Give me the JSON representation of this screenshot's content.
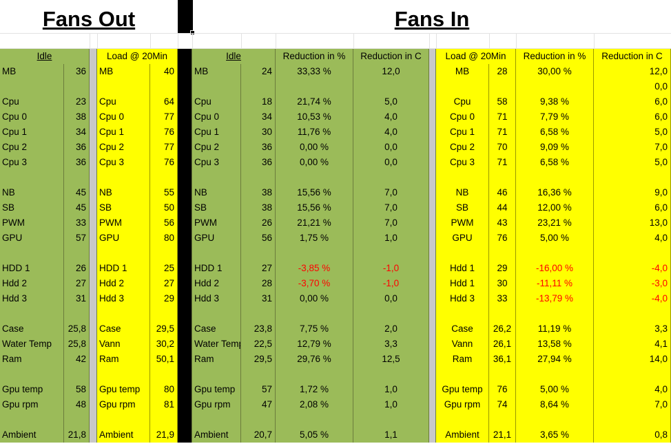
{
  "titles": {
    "fans_out": "Fans Out",
    "fans_in": "Fans In"
  },
  "headers": {
    "out_idle": "Idle",
    "out_load": "Load @ 20Min",
    "in_idle": "Idle",
    "in_red_pct": "Reduction in  %",
    "in_red_c": "Reduction in  C",
    "in_load": "Load @ 20Min",
    "in_load_red_pct": "Reduction in  %",
    "in_load_red_c": "Reduction in  C"
  },
  "rows": [
    {
      "oi_label": "MB",
      "oi_val": "36",
      "ol_label": "MB",
      "ol_val": "40",
      "ii_label": "MB",
      "ii_val": "24",
      "ii_pct": "33,33 %",
      "ii_c": "12,0",
      "il_label": "MB",
      "il_val": "28",
      "il_pct": "30,00 %",
      "il_c": "12,0"
    },
    {
      "oi_label": "",
      "oi_val": "",
      "ol_label": "",
      "ol_val": "",
      "ii_label": "",
      "ii_val": "",
      "ii_pct": "",
      "ii_c": "",
      "il_label": "",
      "il_val": "",
      "il_pct": "",
      "il_c": "0,0"
    },
    {
      "oi_label": "Cpu",
      "oi_val": "23",
      "ol_label": "Cpu",
      "ol_val": "64",
      "ii_label": "Cpu",
      "ii_val": "18",
      "ii_pct": "21,74 %",
      "ii_c": "5,0",
      "il_label": "Cpu",
      "il_val": "58",
      "il_pct": "9,38 %",
      "il_c": "6,0"
    },
    {
      "oi_label": "Cpu 0",
      "oi_val": "38",
      "ol_label": "Cpu 0",
      "ol_val": "77",
      "ii_label": "Cpu 0",
      "ii_val": "34",
      "ii_pct": "10,53 %",
      "ii_c": "4,0",
      "il_label": "Cpu 0",
      "il_val": "71",
      "il_pct": "7,79 %",
      "il_c": "6,0"
    },
    {
      "oi_label": "Cpu 1",
      "oi_val": "34",
      "ol_label": "Cpu 1",
      "ol_val": "76",
      "ii_label": "Cpu 1",
      "ii_val": "30",
      "ii_pct": "11,76 %",
      "ii_c": "4,0",
      "il_label": "Cpu 1",
      "il_val": "71",
      "il_pct": "6,58 %",
      "il_c": "5,0"
    },
    {
      "oi_label": "Cpu 2",
      "oi_val": "36",
      "ol_label": "Cpu 2",
      "ol_val": "77",
      "ii_label": "Cpu 2",
      "ii_val": "36",
      "ii_pct": "0,00 %",
      "ii_c": "0,0",
      "il_label": "Cpu 2",
      "il_val": "70",
      "il_pct": "9,09 %",
      "il_c": "7,0"
    },
    {
      "oi_label": "Cpu 3",
      "oi_val": "36",
      "ol_label": "Cpu 3",
      "ol_val": "76",
      "ii_label": "Cpu 3",
      "ii_val": "36",
      "ii_pct": "0,00 %",
      "ii_c": "0,0",
      "il_label": "Cpu 3",
      "il_val": "71",
      "il_pct": "6,58 %",
      "il_c": "5,0"
    },
    {
      "oi_label": "",
      "oi_val": "",
      "ol_label": "",
      "ol_val": "",
      "ii_label": "",
      "ii_val": "",
      "ii_pct": "",
      "ii_c": "",
      "il_label": "",
      "il_val": "",
      "il_pct": "",
      "il_c": ""
    },
    {
      "oi_label": "NB",
      "oi_val": "45",
      "ol_label": "NB",
      "ol_val": "55",
      "ii_label": "NB",
      "ii_val": "38",
      "ii_pct": "15,56 %",
      "ii_c": "7,0",
      "il_label": "NB",
      "il_val": "46",
      "il_pct": "16,36 %",
      "il_c": "9,0"
    },
    {
      "oi_label": "SB",
      "oi_val": "45",
      "ol_label": "SB",
      "ol_val": "50",
      "ii_label": "SB",
      "ii_val": "38",
      "ii_pct": "15,56 %",
      "ii_c": "7,0",
      "il_label": "SB",
      "il_val": "44",
      "il_pct": "12,00 %",
      "il_c": "6,0"
    },
    {
      "oi_label": "PWM",
      "oi_val": "33",
      "ol_label": "PWM",
      "ol_val": "56",
      "ii_label": "PWM",
      "ii_val": "26",
      "ii_pct": "21,21 %",
      "ii_c": "7,0",
      "il_label": "PWM",
      "il_val": "43",
      "il_pct": "23,21 %",
      "il_c": "13,0"
    },
    {
      "oi_label": "GPU",
      "oi_val": "57",
      "ol_label": "GPU",
      "ol_val": "80",
      "ii_label": "GPU",
      "ii_val": "56",
      "ii_pct": "1,75 %",
      "ii_c": "1,0",
      "il_label": "GPU",
      "il_val": "76",
      "il_pct": "5,00 %",
      "il_c": "4,0"
    },
    {
      "oi_label": "",
      "oi_val": "",
      "ol_label": "",
      "ol_val": "",
      "ii_label": "",
      "ii_val": "",
      "ii_pct": "",
      "ii_c": "",
      "il_label": "",
      "il_val": "",
      "il_pct": "",
      "il_c": ""
    },
    {
      "oi_label": "HDD 1",
      "oi_val": "26",
      "ol_label": "HDD 1",
      "ol_val": "25",
      "ii_label": "HDD 1",
      "ii_val": "27",
      "ii_pct": "-3,85 %",
      "ii_c": "-1,0",
      "il_label": "Hdd 1",
      "il_val": "29",
      "il_pct": "-16,00 %",
      "il_c": "-4,0",
      "neg_in": true,
      "neg_load": true
    },
    {
      "oi_label": "Hdd 2",
      "oi_val": "27",
      "ol_label": "Hdd 2",
      "ol_val": "27",
      "ii_label": "Hdd 2",
      "ii_val": "28",
      "ii_pct": "-3,70 %",
      "ii_c": "-1,0",
      "il_label": "Hdd 1",
      "il_val": "30",
      "il_pct": "-11,11 %",
      "il_c": "-3,0",
      "neg_in": true,
      "neg_load": true
    },
    {
      "oi_label": "Hdd 3",
      "oi_val": "31",
      "ol_label": "Hdd 3",
      "ol_val": "29",
      "ii_label": "Hdd 3",
      "ii_val": "31",
      "ii_pct": "0,00 %",
      "ii_c": "0,0",
      "il_label": "Hdd 3",
      "il_val": "33",
      "il_pct": "-13,79 %",
      "il_c": "-4,0",
      "neg_load": true
    },
    {
      "oi_label": "",
      "oi_val": "",
      "ol_label": "",
      "ol_val": "",
      "ii_label": "",
      "ii_val": "",
      "ii_pct": "",
      "ii_c": "",
      "il_label": "",
      "il_val": "",
      "il_pct": "",
      "il_c": ""
    },
    {
      "oi_label": "Case",
      "oi_val": "25,8",
      "ol_label": "Case",
      "ol_val": "29,5",
      "ii_label": "Case",
      "ii_val": "23,8",
      "ii_pct": "7,75 %",
      "ii_c": "2,0",
      "il_label": "Case",
      "il_val": "26,2",
      "il_pct": "11,19 %",
      "il_c": "3,3"
    },
    {
      "oi_label": "Water Temp",
      "oi_val": "25,8",
      "ol_label": "Vann",
      "ol_val": "30,2",
      "ii_label": "Water Temp",
      "ii_val": "22,5",
      "ii_pct": "12,79 %",
      "ii_c": "3,3",
      "il_label": "Vann",
      "il_val": "26,1",
      "il_pct": "13,58 %",
      "il_c": "4,1"
    },
    {
      "oi_label": "Ram",
      "oi_val": "42",
      "ol_label": "Ram",
      "ol_val": "50,1",
      "ii_label": "Ram",
      "ii_val": "29,5",
      "ii_pct": "29,76 %",
      "ii_c": "12,5",
      "il_label": "Ram",
      "il_val": "36,1",
      "il_pct": "27,94 %",
      "il_c": "14,0"
    },
    {
      "oi_label": "",
      "oi_val": "",
      "ol_label": "",
      "ol_val": "",
      "ii_label": "",
      "ii_val": "",
      "ii_pct": "",
      "ii_c": "",
      "il_label": "",
      "il_val": "",
      "il_pct": "",
      "il_c": ""
    },
    {
      "oi_label": "Gpu temp",
      "oi_val": "58",
      "ol_label": "Gpu temp",
      "ol_val": "80",
      "ii_label": "Gpu temp",
      "ii_val": "57",
      "ii_pct": "1,72 %",
      "ii_c": "1,0",
      "il_label": "Gpu temp",
      "il_val": "76",
      "il_pct": "5,00 %",
      "il_c": "4,0"
    },
    {
      "oi_label": "Gpu rpm",
      "oi_val": "48",
      "ol_label": "Gpu rpm",
      "ol_val": "81",
      "ii_label": "Gpu rpm",
      "ii_val": "47",
      "ii_pct": "2,08 %",
      "ii_c": "1,0",
      "il_label": "Gpu rpm",
      "il_val": "74",
      "il_pct": "8,64 %",
      "il_c": "7,0"
    },
    {
      "oi_label": "",
      "oi_val": "",
      "ol_label": "",
      "ol_val": "",
      "ii_label": "",
      "ii_val": "",
      "ii_pct": "",
      "ii_c": "",
      "il_label": "",
      "il_val": "",
      "il_pct": "",
      "il_c": ""
    },
    {
      "oi_label": "Ambient",
      "oi_val": "21,8",
      "ol_label": "Ambient",
      "ol_val": "21,9",
      "ii_label": "Ambient",
      "ii_val": "20,7",
      "ii_pct": "5,05 %",
      "ii_c": "1,1",
      "il_label": "Ambient",
      "il_val": "21,1",
      "il_pct": "3,65 %",
      "il_c": "0,8"
    }
  ],
  "colors": {
    "green": "#9bbb59",
    "yellow": "#ffff00",
    "separator": "#c8c8c8",
    "black": "#000000",
    "negative": "#ff0000"
  }
}
